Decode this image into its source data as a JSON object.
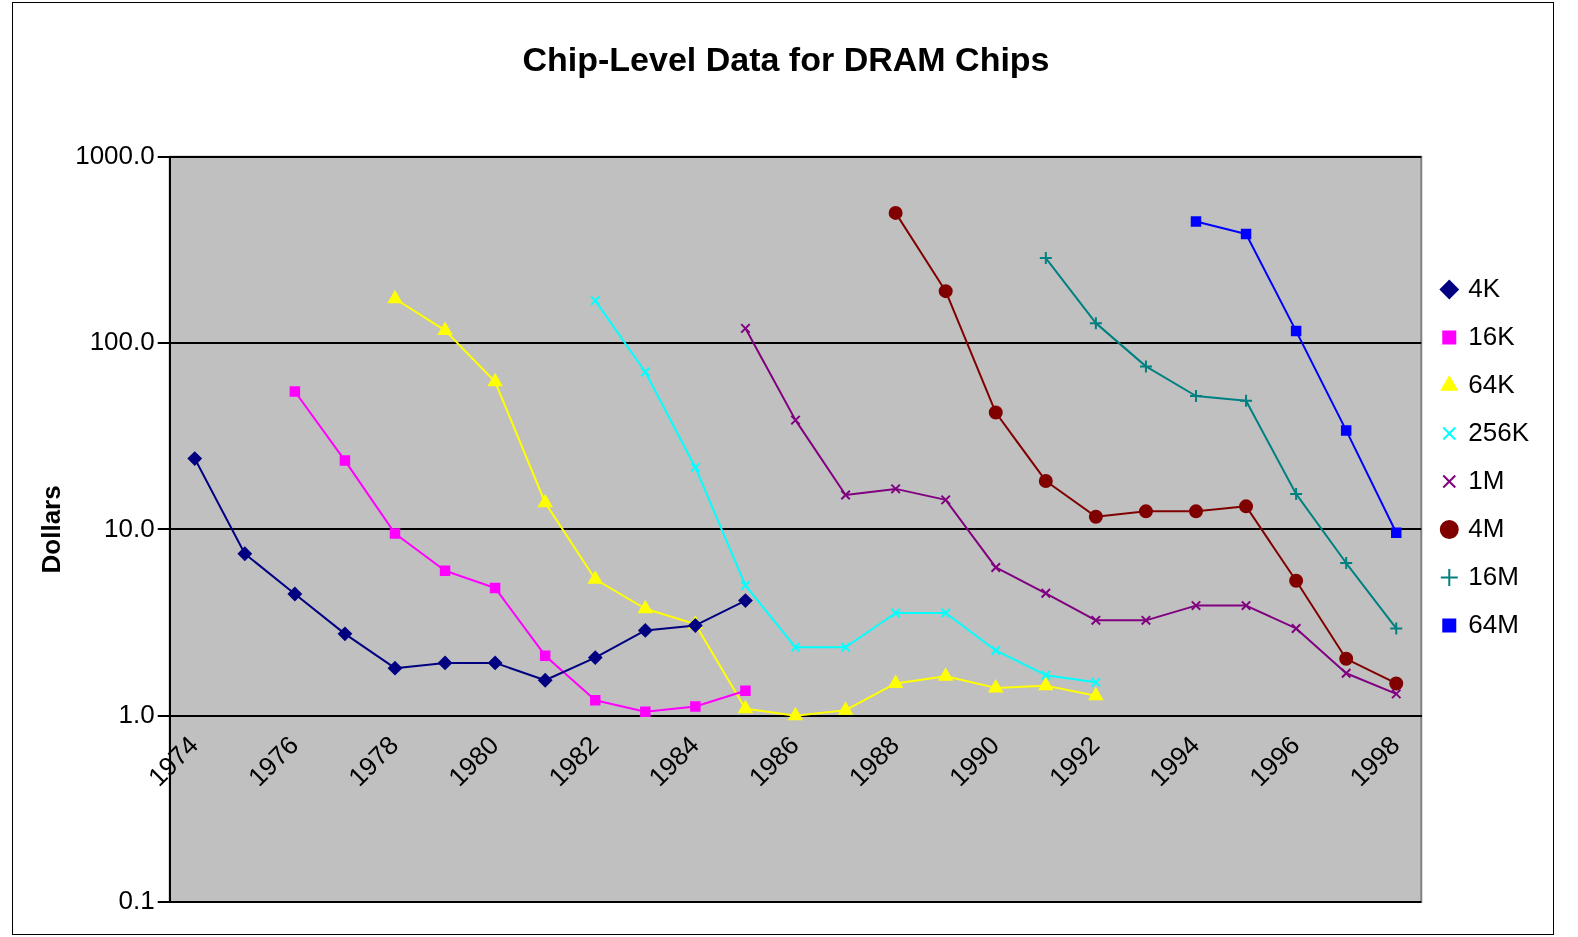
{
  "chart_data": {
    "type": "line",
    "title": "Chip-Level Data for DRAM Chips",
    "ylabel": "Dollars",
    "categories": [
      "1974",
      null,
      "1976",
      null,
      "1978",
      null,
      "1980",
      null,
      "1982",
      null,
      "1984",
      null,
      "1986",
      null,
      "1988",
      null,
      "1990",
      null,
      "1992",
      null,
      "1994",
      null,
      "1996",
      null,
      "1998"
    ],
    "series": [
      {
        "name": "4K",
        "color": "#000080",
        "marker": "diamond",
        "values": [
          24,
          7.4,
          4.5,
          2.75,
          1.8,
          1.92,
          1.92,
          1.55,
          2.05,
          2.87,
          3.05,
          4.15,
          null,
          null,
          null,
          null,
          null,
          null,
          null,
          null,
          null,
          null,
          null,
          null,
          null
        ]
      },
      {
        "name": "16K",
        "color": "#ff00ff",
        "marker": "square",
        "values": [
          null,
          null,
          55,
          23.4,
          9.5,
          6.0,
          4.85,
          2.1,
          1.21,
          1.05,
          1.12,
          1.36,
          null,
          null,
          null,
          null,
          null,
          null,
          null,
          null,
          null,
          null,
          null,
          null,
          null
        ]
      },
      {
        "name": "64K",
        "color": "#ffff00",
        "marker": "triangle",
        "values": [
          null,
          null,
          null,
          null,
          173,
          117,
          62,
          13.9,
          5.4,
          3.75,
          3.1,
          1.09,
          1.0,
          1.07,
          1.49,
          1.63,
          1.41,
          1.45,
          1.28,
          null,
          null,
          null,
          null,
          null,
          null
        ]
      },
      {
        "name": "256K",
        "color": "#00ffff",
        "marker": "cross",
        "values": [
          null,
          null,
          null,
          null,
          null,
          null,
          null,
          null,
          169,
          70,
          21.5,
          5.0,
          2.33,
          2.33,
          3.56,
          3.56,
          2.24,
          1.65,
          1.51,
          null,
          null,
          null,
          null,
          null,
          null
        ]
      },
      {
        "name": "1M",
        "color": "#800080",
        "marker": "cross",
        "values": [
          null,
          null,
          null,
          null,
          null,
          null,
          null,
          null,
          null,
          null,
          null,
          120,
          38.6,
          15.3,
          16.5,
          14.4,
          6.25,
          4.54,
          3.25,
          3.25,
          3.9,
          3.9,
          2.94,
          1.69,
          1.31
        ]
      },
      {
        "name": "4M",
        "color": "#800000",
        "marker": "circle",
        "values": [
          null,
          null,
          null,
          null,
          null,
          null,
          null,
          null,
          null,
          null,
          null,
          null,
          null,
          null,
          500,
          190,
          42.4,
          18.2,
          11.7,
          12.5,
          12.5,
          13.3,
          5.3,
          2.02,
          1.49
        ]
      },
      {
        "name": "16M",
        "color": "#008080",
        "marker": "plus",
        "values": [
          null,
          null,
          null,
          null,
          null,
          null,
          null,
          null,
          null,
          null,
          null,
          null,
          null,
          null,
          null,
          null,
          null,
          286,
          128,
          75,
          52,
          49,
          15.5,
          6.6,
          2.94
        ]
      },
      {
        "name": "64M",
        "color": "#0000ff",
        "marker": "square",
        "values": [
          null,
          null,
          null,
          null,
          null,
          null,
          null,
          null,
          null,
          null,
          null,
          null,
          null,
          null,
          null,
          null,
          null,
          null,
          null,
          null,
          450,
          385,
          116,
          34,
          9.6
        ]
      }
    ],
    "log": "y",
    "ylim": [
      0.1,
      1000
    ],
    "yticks": [
      {
        "value": 0.1,
        "label": "0.1"
      },
      {
        "value": 1,
        "label": "1.0"
      },
      {
        "value": 10,
        "label": "10.0"
      },
      {
        "value": 100,
        "label": "100.0"
      },
      {
        "value": 1000,
        "label": "1000.0"
      }
    ],
    "grid": "y",
    "legend": "right"
  }
}
